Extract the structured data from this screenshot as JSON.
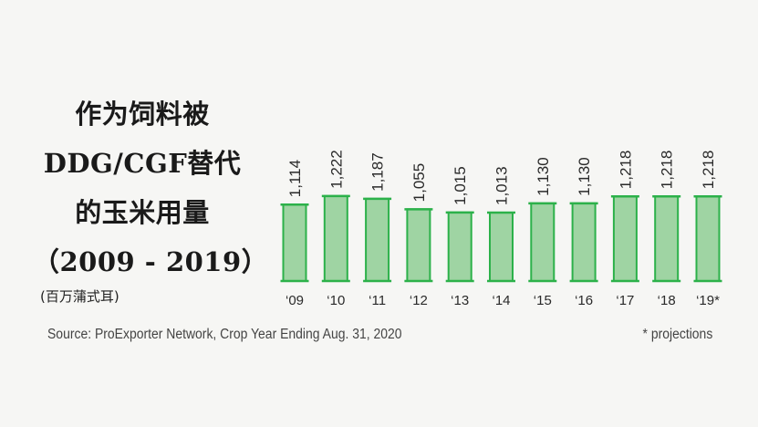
{
  "title": {
    "lines": [
      "作为饲料被",
      "DDG/CGF替代",
      "的玉米用量",
      "（2009 - 2019）"
    ],
    "unit": "(百万蒲式耳)"
  },
  "source": "Source: ProExporter Network, Crop Year Ending Aug. 31, 2020",
  "note": "* projections",
  "colors": {
    "bar_fill": "#9fd4a3",
    "bar_stroke": "#2cb14a"
  },
  "chart_data": {
    "type": "bar",
    "categories": [
      "‘09",
      "‘10",
      "‘11",
      "‘12",
      "‘13",
      "‘14",
      "‘15",
      "‘16",
      "‘17",
      "‘18",
      "‘19*"
    ],
    "values": [
      1114,
      1222,
      1187,
      1055,
      1015,
      1013,
      1130,
      1130,
      1218,
      1218,
      1218
    ],
    "value_labels": [
      "1,114",
      "1,222",
      "1,187",
      "1,055",
      "1,015",
      "1,013",
      "1,130",
      "1,130",
      "1,218",
      "1,218",
      "1,218"
    ],
    "title": "",
    "xlabel": "",
    "ylabel": "",
    "grid": false
  }
}
